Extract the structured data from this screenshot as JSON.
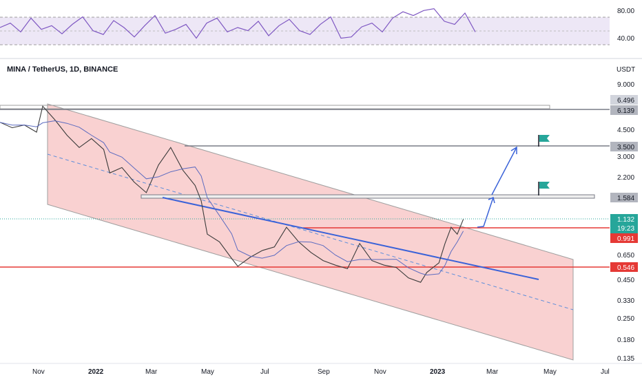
{
  "chart_data": {
    "type": "candlestick",
    "title": "MINA / TetherUS, 1D, BINANCE",
    "price_axis_unit": "USDT",
    "price_scale": "log",
    "price_ticks": [
      "9.000",
      "4.500",
      "3.000",
      "2.200",
      "0.650",
      "0.450",
      "0.330",
      "0.250",
      "0.180",
      "0.135"
    ],
    "rsi_ticks": [
      "80.00",
      "40.00"
    ],
    "time_ticks": [
      {
        "label": "Nov",
        "bold": false
      },
      {
        "label": "2022",
        "bold": true
      },
      {
        "label": "Mar",
        "bold": false
      },
      {
        "label": "May",
        "bold": false
      },
      {
        "label": "Jul",
        "bold": false
      },
      {
        "label": "Sep",
        "bold": false
      },
      {
        "label": "Nov",
        "bold": false
      },
      {
        "label": "2023",
        "bold": true
      },
      {
        "label": "Mar",
        "bold": false
      },
      {
        "label": "May",
        "bold": false
      },
      {
        "label": "Jul",
        "bold": false
      }
    ],
    "levels": [
      {
        "label": "6.496",
        "value": 6.496,
        "style": "gray"
      },
      {
        "label": "6.139",
        "value": 6.139,
        "style": "gray"
      },
      {
        "label": "3.500",
        "value": 3.5,
        "style": "gray"
      },
      {
        "label": "1.584",
        "value": 1.584,
        "style": "gray"
      },
      {
        "label": "0.991",
        "value": 0.991,
        "style": "red"
      },
      {
        "label": "0.546",
        "value": 0.546,
        "style": "red"
      }
    ],
    "current_price": {
      "value": "1.132",
      "countdown": "19:23"
    },
    "price_path": [
      [
        0,
        5.0
      ],
      [
        0.02,
        4.6
      ],
      [
        0.04,
        4.8
      ],
      [
        0.06,
        4.3
      ],
      [
        0.07,
        6.4
      ],
      [
        0.09,
        5.2
      ],
      [
        0.11,
        4.1
      ],
      [
        0.13,
        3.4
      ],
      [
        0.15,
        3.9
      ],
      [
        0.17,
        3.3
      ],
      [
        0.18,
        2.3
      ],
      [
        0.2,
        2.5
      ],
      [
        0.22,
        2.0
      ],
      [
        0.24,
        1.7
      ],
      [
        0.26,
        2.6
      ],
      [
        0.28,
        3.4
      ],
      [
        0.3,
        2.4
      ],
      [
        0.32,
        1.9
      ],
      [
        0.33,
        1.5
      ],
      [
        0.34,
        0.9
      ],
      [
        0.36,
        0.8
      ],
      [
        0.38,
        0.62
      ],
      [
        0.39,
        0.55
      ],
      [
        0.41,
        0.63
      ],
      [
        0.43,
        0.7
      ],
      [
        0.45,
        0.74
      ],
      [
        0.47,
        1.0
      ],
      [
        0.49,
        0.8
      ],
      [
        0.51,
        0.68
      ],
      [
        0.53,
        0.6
      ],
      [
        0.55,
        0.56
      ],
      [
        0.57,
        0.53
      ],
      [
        0.59,
        0.78
      ],
      [
        0.61,
        0.6
      ],
      [
        0.63,
        0.56
      ],
      [
        0.65,
        0.54
      ],
      [
        0.67,
        0.46
      ],
      [
        0.69,
        0.43
      ],
      [
        0.7,
        0.5
      ],
      [
        0.72,
        0.58
      ],
      [
        0.73,
        0.78
      ],
      [
        0.74,
        1.0
      ],
      [
        0.75,
        0.9
      ],
      [
        0.76,
        1.13
      ]
    ],
    "rsi_path": [
      55,
      62,
      48,
      70,
      52,
      58,
      45,
      60,
      72,
      50,
      44,
      66,
      55,
      40,
      58,
      74,
      46,
      52,
      60,
      38,
      62,
      70,
      48,
      55,
      50,
      65,
      42,
      58,
      68,
      50,
      44,
      60,
      72,
      38,
      40,
      56,
      62,
      48,
      70,
      80,
      74,
      82,
      85,
      65,
      60,
      78,
      48
    ]
  }
}
